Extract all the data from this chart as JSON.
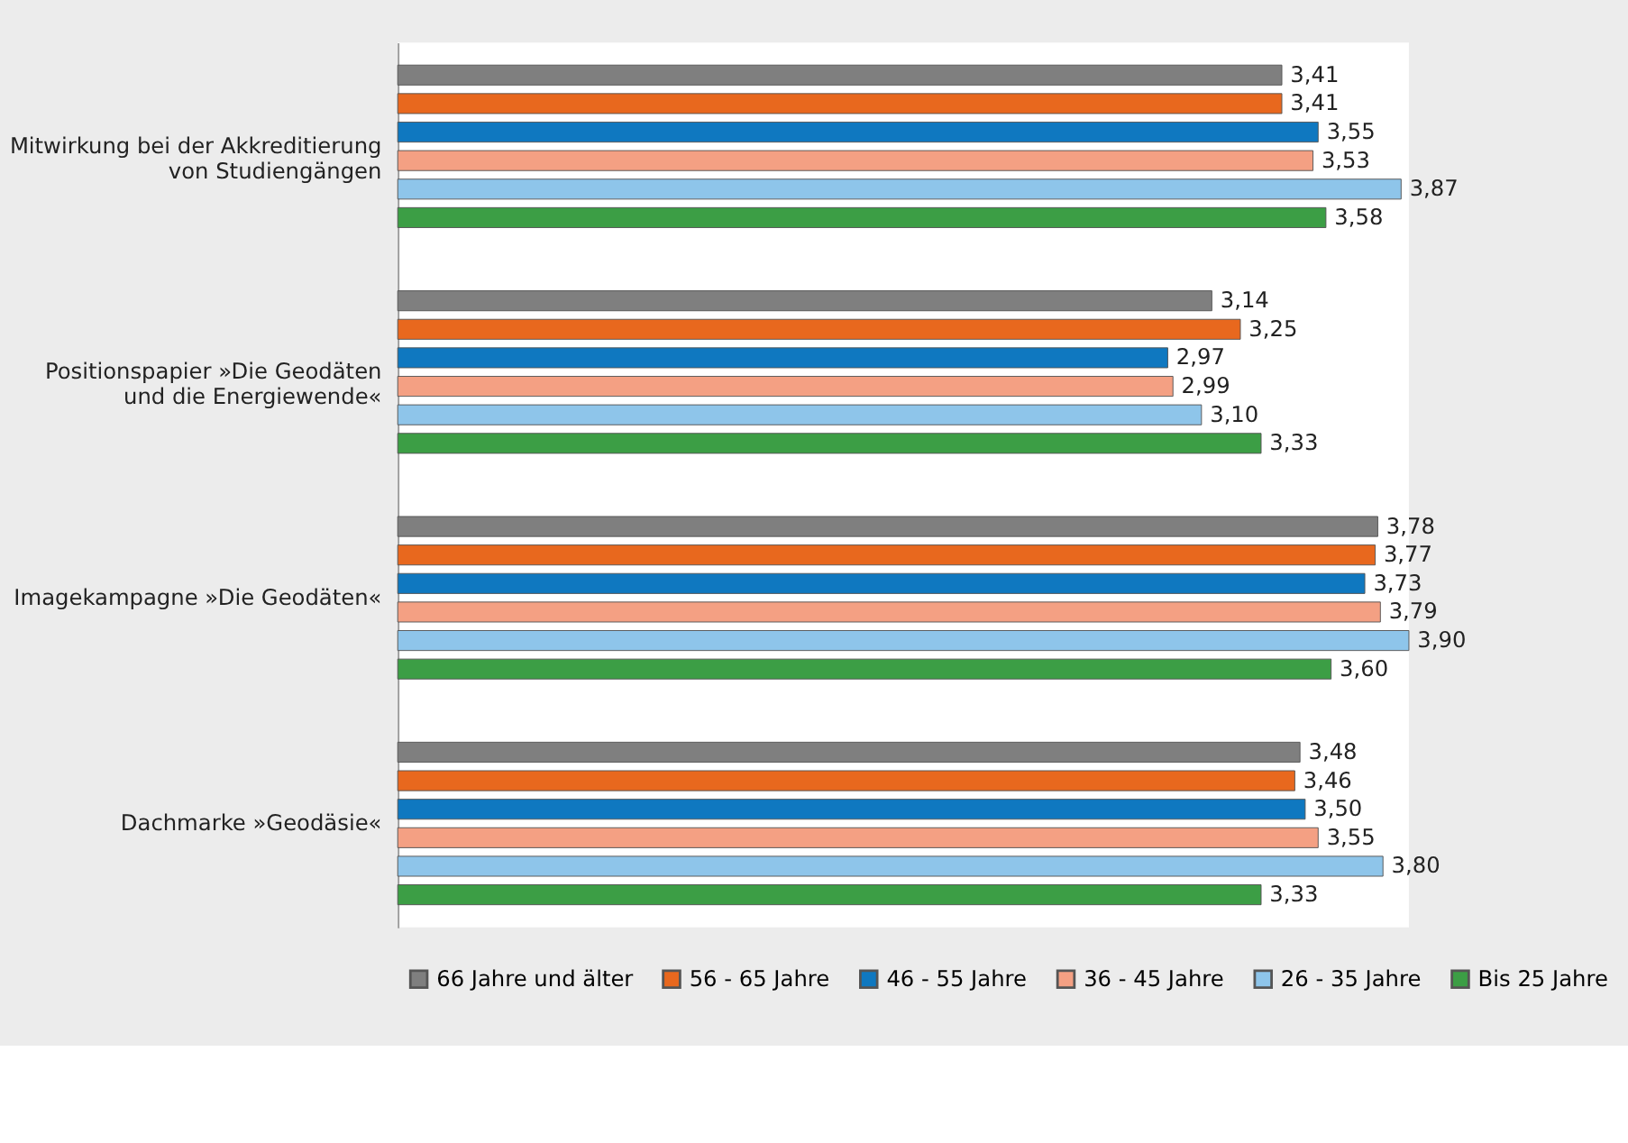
{
  "chart_data": {
    "type": "bar",
    "orientation": "horizontal",
    "categories": [
      "Mitwirkung bei der Akkreditierung\nvon Studiengängen",
      "Positionspapier »Die Geodäten\nund die Energiewende«",
      "Imagekampagne »Die Geodäten«",
      "Dachmarke »Geodäsie«"
    ],
    "series": [
      {
        "name": "66 Jahre und älter",
        "color": "#7f7f7f",
        "values": [
          3.41,
          3.14,
          3.78,
          3.48
        ],
        "value_labels": [
          "3,41",
          "3,14",
          "3,78",
          "3,48"
        ]
      },
      {
        "name": "56 - 65 Jahre",
        "color": "#e8681e",
        "values": [
          3.41,
          3.25,
          3.77,
          3.46
        ],
        "value_labels": [
          "3,41",
          "3,25",
          "3,77",
          "3,46"
        ]
      },
      {
        "name": "46 - 55 Jahre",
        "color": "#0f78c0",
        "values": [
          3.55,
          2.97,
          3.73,
          3.5
        ],
        "value_labels": [
          "3,55",
          "2,97",
          "3,73",
          "3,50"
        ]
      },
      {
        "name": "36 - 45 Jahre",
        "color": "#f4a083",
        "values": [
          3.53,
          2.99,
          3.79,
          3.55
        ],
        "value_labels": [
          "3,53",
          "2,99",
          "3,79",
          "3,55"
        ]
      },
      {
        "name": "26 - 35 Jahre",
        "color": "#8ec5ea",
        "values": [
          3.87,
          3.1,
          3.9,
          3.8
        ],
        "value_labels": [
          "3,87",
          "3,10",
          "3,90",
          "3,80"
        ]
      },
      {
        "name": "Bis 25 Jahre",
        "color": "#3c9e45",
        "values": [
          3.58,
          3.33,
          3.6,
          3.33
        ],
        "value_labels": [
          "3,58",
          "3,33",
          "3,60",
          "3,33"
        ]
      }
    ],
    "legend": "bottom",
    "grid": false
  }
}
